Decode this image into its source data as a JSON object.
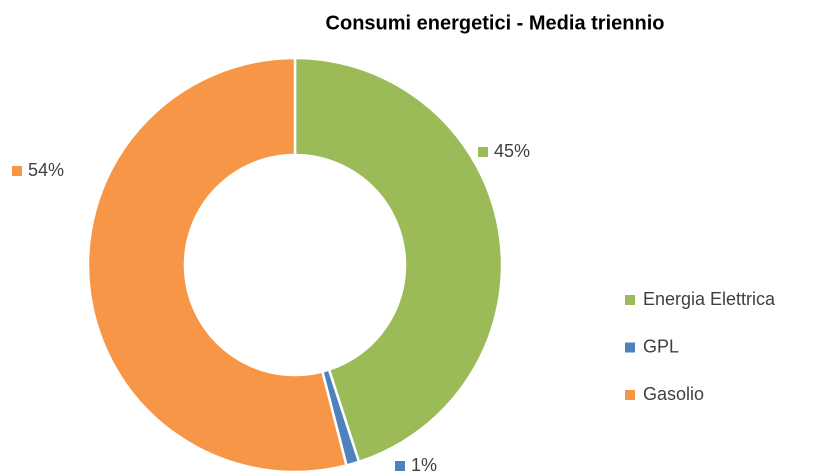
{
  "chart_data": {
    "type": "donut",
    "title": "Consumi energetici - Media triennio",
    "categories": [
      "Energia Elettrica",
      "GPL",
      "Gasolio"
    ],
    "values": [
      45,
      1,
      54
    ],
    "value_labels": [
      "45%",
      "1%",
      "54%"
    ],
    "colors": [
      "#9bbb59",
      "#4f81bd",
      "#f79646"
    ],
    "legend": "right"
  }
}
